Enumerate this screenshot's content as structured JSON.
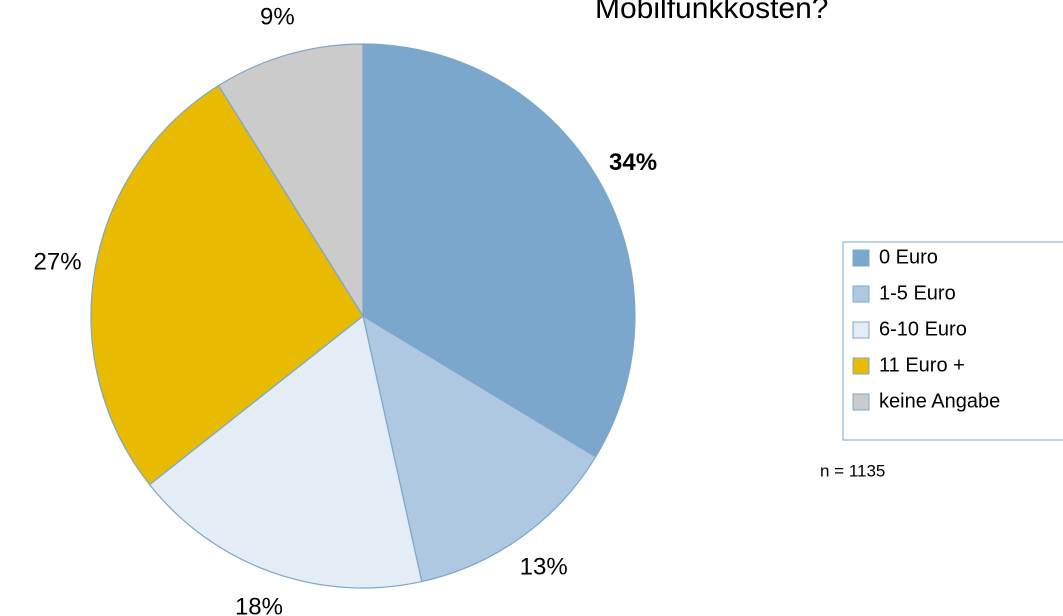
{
  "chart_data": {
    "type": "pie",
    "title": "Mobilfunkkosten?",
    "categories": [
      "0 Euro",
      "1-5 Euro",
      "6-10 Euro",
      "11 Euro +",
      "keine Angabe"
    ],
    "values": [
      34,
      13,
      18,
      27,
      9
    ],
    "value_labels": [
      "34%",
      "13%",
      "18%",
      "27%",
      "9%"
    ],
    "colors": [
      "#7ba7cc",
      "#adc8e0",
      "#e4ecf5",
      "#e9bb00",
      "#cbcbcb"
    ],
    "note": "n = 1135"
  }
}
